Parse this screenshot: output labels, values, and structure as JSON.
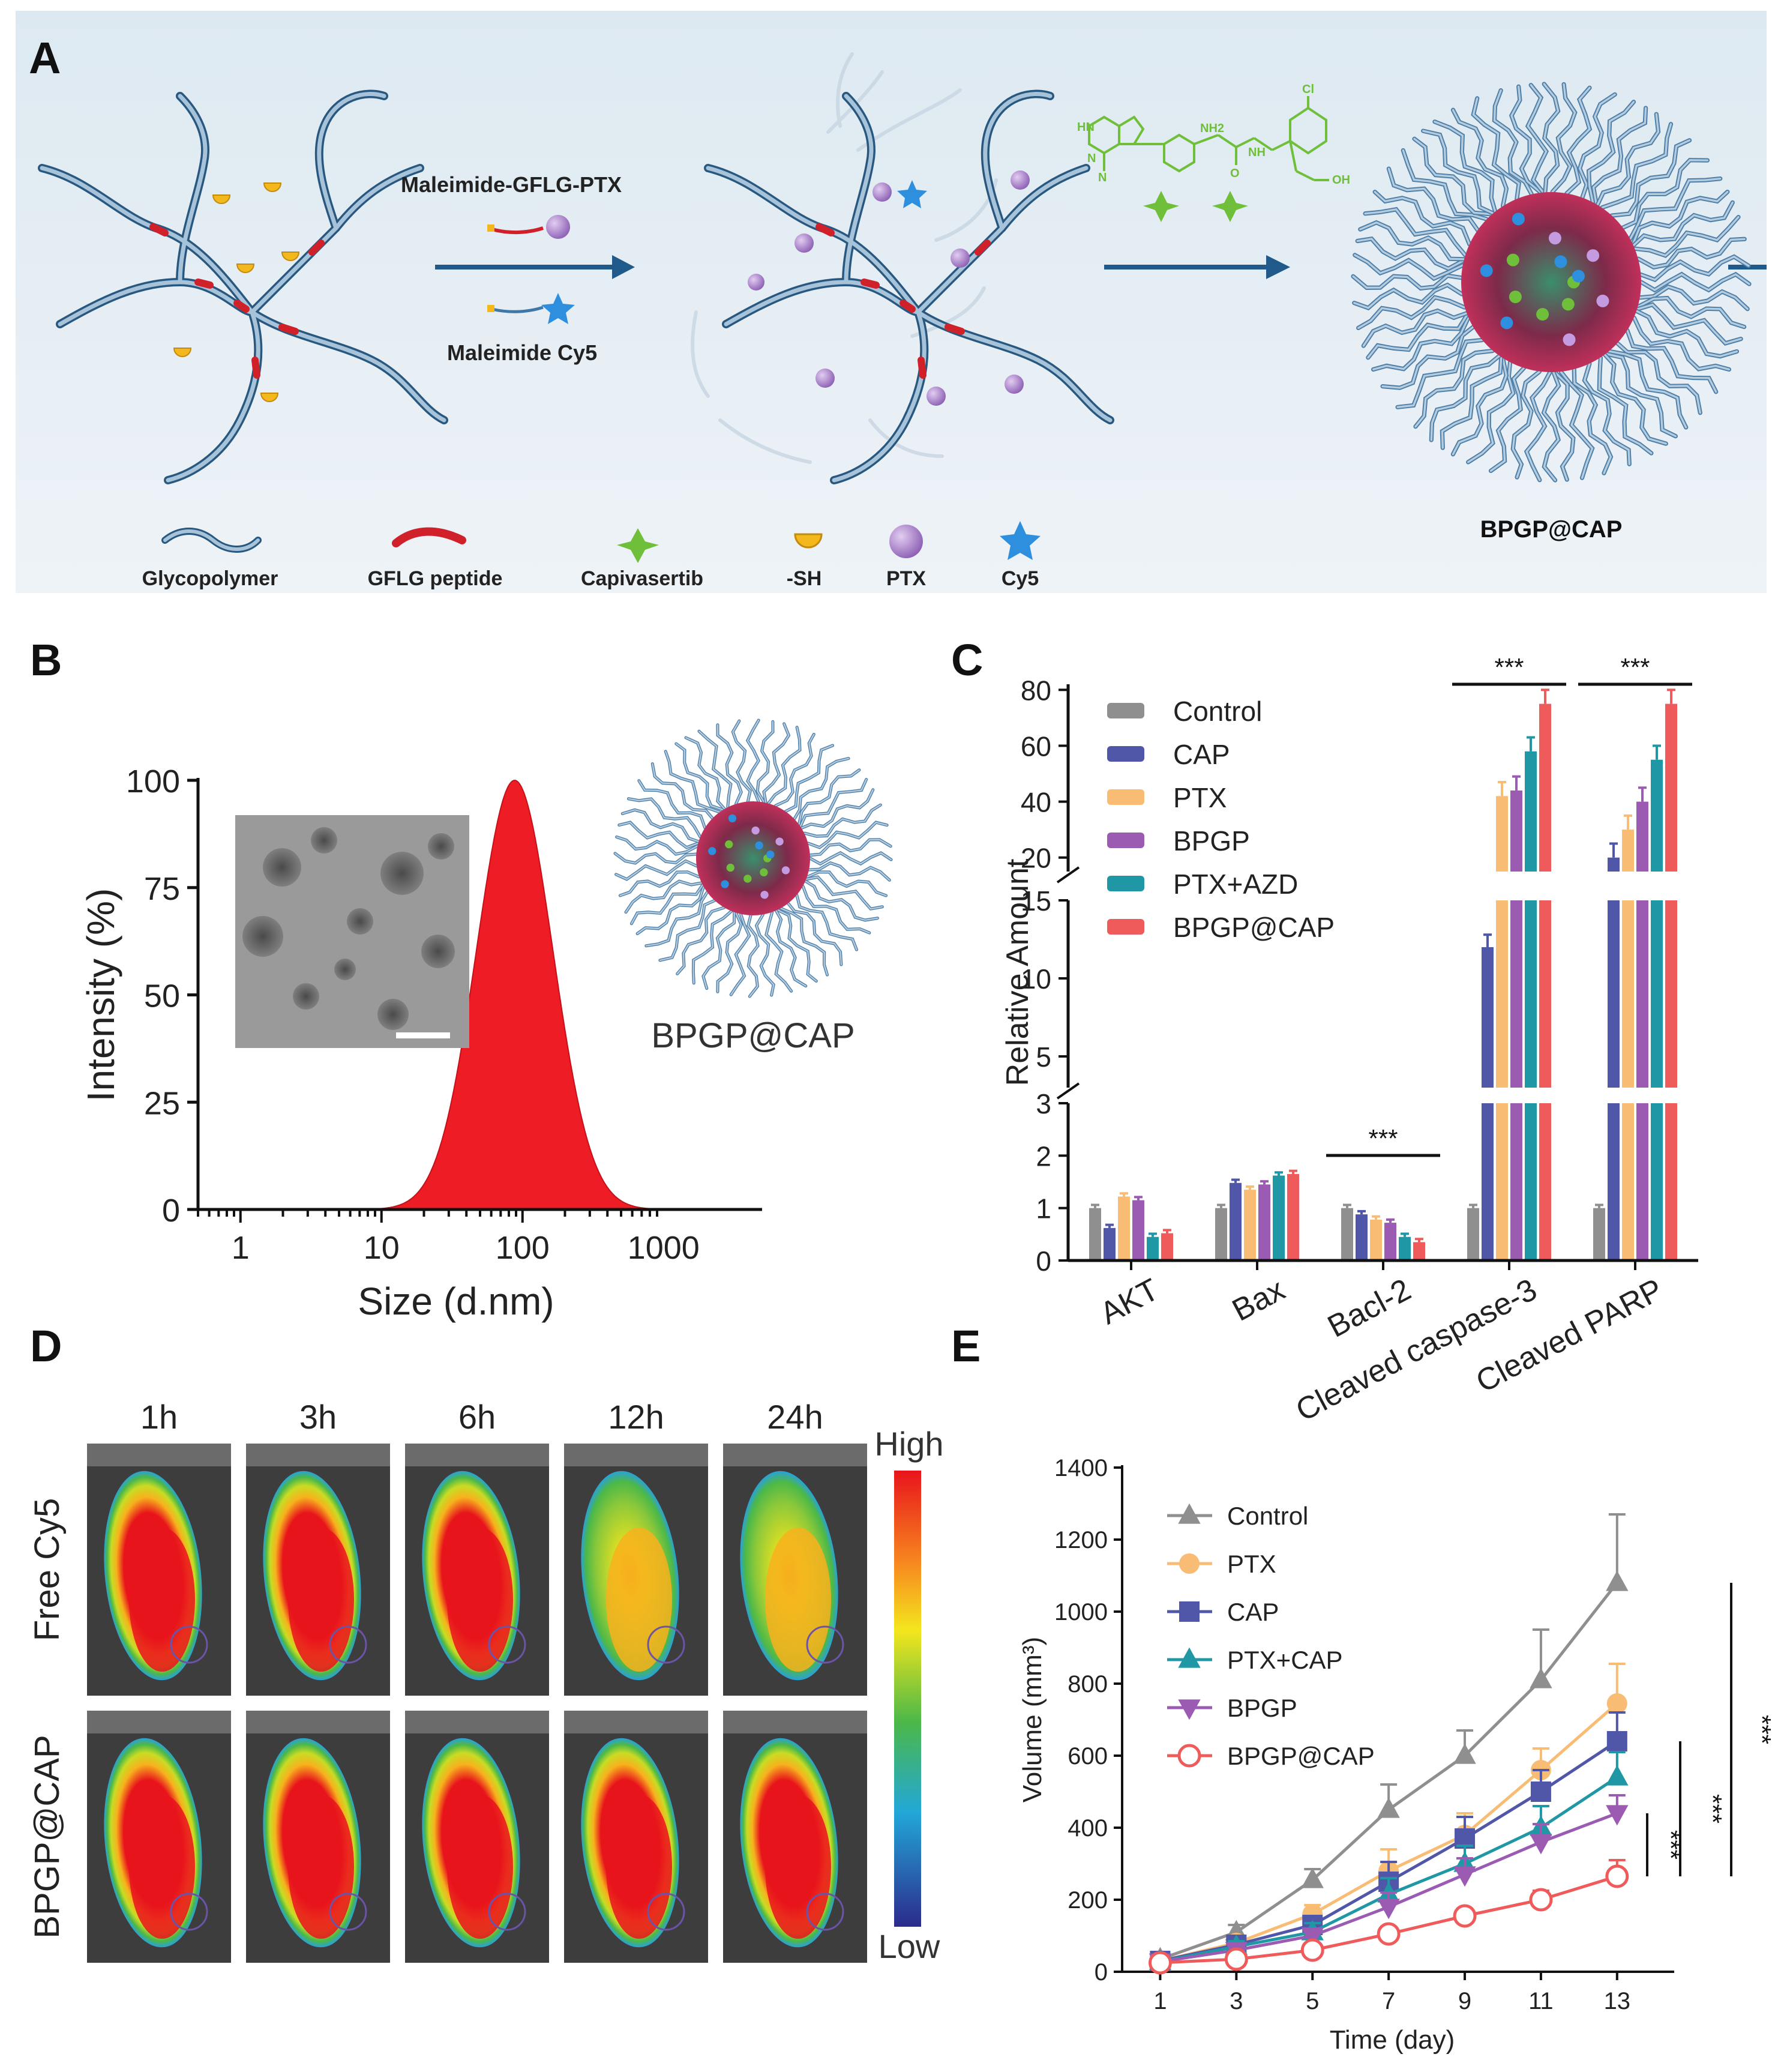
{
  "panel_labels": {
    "a": "A",
    "b": "B",
    "c": "C",
    "d": "D",
    "e": "E"
  },
  "colors": {
    "polymer": "#3f78a8",
    "polymer_light": "#a9c4dc",
    "peptide": "#d0202a",
    "capivasertib": "#6fbf3a",
    "sh": "#f2b81c",
    "ptx": "#a779c9",
    "cy5": "#2f8fdf",
    "dls_fill": "#ee1c25"
  },
  "schematic": {
    "arrow1_top": "Maleimide-GFLG-PTX",
    "arrow1_bottom": "Maleimide Cy5",
    "product": "BPGP@CAP",
    "legend": [
      "Glycopolymer",
      "GFLG peptide",
      "Capivasertib",
      "-SH",
      "PTX",
      "Cy5"
    ],
    "chem_labels": [
      "HN",
      "N",
      "N",
      "NH2",
      "O",
      "NH",
      "OH",
      "Cl"
    ]
  },
  "dls": {
    "nanoparticle_label": "BPGP@CAP"
  },
  "imaging": {
    "times": [
      "1h",
      "3h",
      "6h",
      "12h",
      "24h"
    ],
    "rows": [
      "Free Cy5",
      "BPGP@CAP"
    ],
    "scale_high": "High",
    "scale_low": "Low"
  },
  "chart_data": [
    {
      "id": "B",
      "type": "area",
      "xlabel": "Size (d.nm)",
      "ylabel": "Intensity (%)",
      "xscale": "log",
      "xlim": [
        0.5,
        5000
      ],
      "ylim": [
        0,
        100
      ],
      "xticks": [
        1,
        10,
        100,
        1000
      ],
      "xtick_labels": [
        "1",
        "10",
        "100",
        "1000"
      ],
      "yticks": [
        0,
        25,
        50,
        75,
        100
      ],
      "series": [
        {
          "name": "BPGP@CAP",
          "peak_x": 88,
          "peak_y": 100,
          "log_sigma": 0.27
        }
      ]
    },
    {
      "id": "C",
      "type": "bar",
      "ylabel": "Relative Amount",
      "categories": [
        "AKT",
        "Bax",
        "Bacl-2",
        "Cleaved caspase-3",
        "Cleaved PARP"
      ],
      "axis_segments": [
        {
          "range": [
            0,
            3
          ],
          "ticks": [
            0,
            1,
            2,
            3
          ]
        },
        {
          "range": [
            3,
            15
          ],
          "ticks": [
            5,
            10,
            15
          ]
        },
        {
          "range": [
            15,
            82
          ],
          "ticks": [
            20,
            40,
            60,
            80
          ]
        }
      ],
      "series": [
        {
          "name": "Control",
          "color": "#8f8f8f",
          "values": [
            1.0,
            1.0,
            1.0,
            1.0,
            1.0
          ]
        },
        {
          "name": "CAP",
          "color": "#5157a8",
          "values": [
            0.62,
            1.48,
            0.88,
            12.0,
            20.0
          ]
        },
        {
          "name": "PTX",
          "color": "#f9bc74",
          "values": [
            1.22,
            1.35,
            0.78,
            42.0,
            30.0
          ]
        },
        {
          "name": "BPGP",
          "color": "#9b5bb2",
          "values": [
            1.15,
            1.45,
            0.72,
            44.0,
            40.0
          ]
        },
        {
          "name": "PTX+AZD",
          "color": "#1f97a5",
          "values": [
            0.45,
            1.62,
            0.45,
            58.0,
            55.0
          ]
        },
        {
          "name": "BPGP@CAP",
          "color": "#ef5b5b",
          "values": [
            0.52,
            1.65,
            0.35,
            75.0,
            75.0
          ]
        }
      ],
      "significance": [
        {
          "category": "Bacl-2",
          "label": "***"
        },
        {
          "category": "Cleaved caspase-3",
          "label": "***"
        },
        {
          "category": "Cleaved PARP",
          "label": "***"
        }
      ]
    },
    {
      "id": "E",
      "type": "line",
      "xlabel": "Time (day)",
      "ylabel": "Volume (mm³)",
      "x": [
        1,
        3,
        5,
        7,
        9,
        11,
        13
      ],
      "xlim": [
        0,
        14.5
      ],
      "ylim": [
        0,
        1400
      ],
      "yticks": [
        0,
        200,
        400,
        600,
        800,
        1000,
        1200,
        1400
      ],
      "series": [
        {
          "name": "Control",
          "color": "#8f8f8f",
          "marker": "triangle-up",
          "values": [
            35,
            110,
            255,
            450,
            600,
            810,
            1080
          ],
          "errors": [
            8,
            20,
            30,
            70,
            70,
            140,
            190
          ]
        },
        {
          "name": "PTX",
          "color": "#f9bc74",
          "marker": "circle",
          "values": [
            30,
            80,
            160,
            280,
            380,
            560,
            745
          ],
          "errors": [
            8,
            18,
            25,
            60,
            60,
            60,
            110
          ]
        },
        {
          "name": "CAP",
          "color": "#5157a8",
          "marker": "square",
          "values": [
            30,
            75,
            130,
            250,
            370,
            500,
            640
          ],
          "errors": [
            8,
            15,
            25,
            55,
            60,
            60,
            80
          ]
        },
        {
          "name": "PTX+CAP",
          "color": "#1f97a5",
          "marker": "triangle-up",
          "values": [
            28,
            70,
            110,
            215,
            300,
            400,
            540
          ],
          "errors": [
            8,
            15,
            25,
            45,
            50,
            60,
            70
          ]
        },
        {
          "name": "BPGP",
          "color": "#9b5bb2",
          "marker": "triangle-down",
          "values": [
            28,
            60,
            100,
            180,
            270,
            360,
            440
          ],
          "errors": [
            8,
            15,
            20,
            40,
            45,
            50,
            50
          ]
        },
        {
          "name": "BPGP@CAP",
          "color": "#ef5b5b",
          "marker": "open-circle",
          "values": [
            25,
            35,
            60,
            105,
            155,
            200,
            265
          ],
          "errors": [
            5,
            10,
            15,
            20,
            20,
            25,
            45
          ]
        }
      ],
      "significance": [
        "***",
        "***",
        "***"
      ]
    }
  ]
}
